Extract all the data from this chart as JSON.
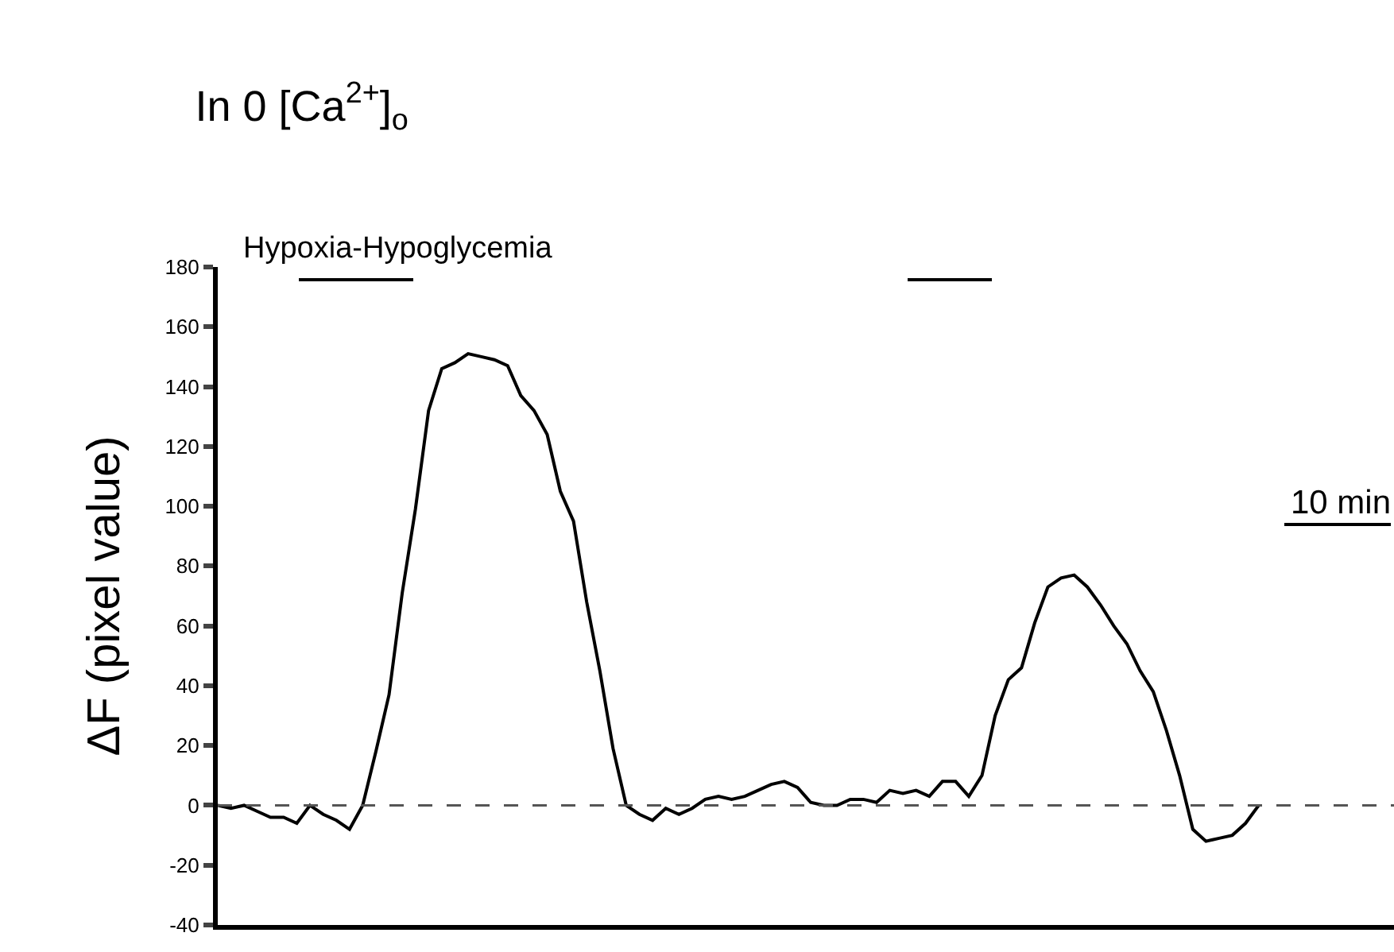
{
  "chart_data": {
    "type": "line",
    "title": "In 0 [Ca$^{2+}$]$_{o}$",
    "ylabel": "ΔF (pixel value)",
    "categories": [
      null,
      null,
      null,
      null,
      null,
      null,
      null,
      null,
      null,
      null,
      null,
      null,
      null,
      null,
      null,
      null,
      null,
      null,
      null,
      null,
      null,
      null,
      null,
      null,
      null,
      null,
      null,
      null,
      null,
      null,
      null,
      null,
      null,
      null,
      null,
      null,
      null,
      null,
      null,
      null,
      null,
      null,
      null,
      null,
      null,
      null,
      null,
      null,
      null,
      null,
      null,
      null,
      null,
      null,
      null,
      null,
      null,
      null,
      null,
      null,
      null,
      null,
      null,
      null,
      null,
      null,
      null,
      null,
      null,
      null,
      null,
      null,
      null,
      null,
      null,
      null,
      null,
      null,
      null,
      null
    ],
    "series": [
      {
        "color": "#000000",
        "values": [
          0,
          -1,
          0,
          -2,
          -4,
          -4,
          -6,
          0,
          -3,
          -5,
          -8,
          0,
          18,
          37,
          71,
          99,
          132,
          146,
          148,
          151,
          150,
          149,
          147,
          137,
          132,
          124,
          105,
          95,
          68,
          45,
          19,
          0,
          -3,
          -5,
          -1,
          -3,
          -1,
          2,
          3,
          2,
          3,
          5,
          7,
          8,
          6,
          1,
          0,
          0,
          2,
          2,
          1,
          5,
          4,
          5,
          3,
          8,
          8,
          3,
          10,
          30,
          42,
          46,
          61,
          73,
          76,
          77,
          73,
          67,
          60,
          54,
          45,
          38,
          25,
          10,
          -8,
          -12,
          -11,
          -10,
          -6,
          0
        ]
      }
    ],
    "ylim": [
      -40,
      180
    ],
    "yticks": [
      -40,
      -20,
      0,
      20,
      40,
      60,
      80,
      100,
      120,
      140,
      160,
      180
    ],
    "tick_labels": "y",
    "grid": false,
    "ref_lines": [
      {
        "axis": "y",
        "value": 0,
        "line_style": "dashed",
        "color": "#555555"
      }
    ],
    "annotations": [
      "Hypoxia-Hypoglycemia",
      "10 min"
    ]
  }
}
